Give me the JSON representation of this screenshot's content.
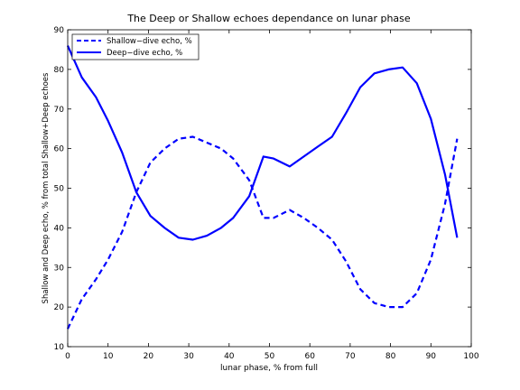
{
  "chart_data": {
    "type": "line",
    "title": "The Deep or Shallow echoes dependance on lunar phase",
    "xlabel": "lunar phase, % from full",
    "ylabel": "Shallow and Deep echo, % from total Shallow+Deep echoes",
    "xlim": [
      0,
      100
    ],
    "ylim": [
      10,
      90
    ],
    "xticks": [
      0,
      10,
      20,
      30,
      40,
      50,
      60,
      70,
      80,
      90,
      100
    ],
    "yticks": [
      10,
      20,
      30,
      40,
      50,
      60,
      70,
      80,
      90
    ],
    "grid": false,
    "legend_position": "top-left",
    "series": [
      {
        "name": "Shallow−dive echo, %",
        "style": "dashed",
        "color": "#0000ff",
        "x": [
          0,
          3.5,
          7,
          10,
          13.5,
          17,
          20.5,
          24,
          27.5,
          31,
          34.5,
          38,
          41,
          45,
          48.5,
          51,
          55,
          58.5,
          62,
          65.5,
          69,
          72.5,
          76,
          79.5,
          83,
          86.5,
          90,
          93.5,
          96.5
        ],
        "y": [
          14.5,
          22,
          27,
          32,
          39,
          49,
          56.5,
          60,
          62.5,
          63,
          61.5,
          60,
          57.5,
          52,
          42.5,
          42.5,
          44.5,
          42.5,
          40,
          37,
          31.5,
          24.5,
          21,
          20,
          20,
          23.5,
          32,
          46,
          62.5
        ]
      },
      {
        "name": "Deep−dive echo, %",
        "style": "solid",
        "color": "#0000ff",
        "x": [
          0,
          3.5,
          7,
          10,
          13.5,
          17,
          20.5,
          24,
          27.5,
          31,
          34.5,
          38,
          41,
          45,
          48.5,
          51,
          55,
          58.5,
          62,
          65.5,
          69,
          72.5,
          76,
          79.5,
          83,
          86.5,
          90,
          93.5,
          96.5
        ],
        "y": [
          86,
          78,
          73,
          67,
          59,
          49,
          43,
          40,
          37.5,
          37,
          38,
          40,
          42.5,
          48,
          58,
          57.5,
          55.5,
          58,
          60.5,
          63,
          69,
          75.5,
          79,
          80,
          80.5,
          76.5,
          67.5,
          53.5,
          37.5
        ]
      }
    ]
  }
}
